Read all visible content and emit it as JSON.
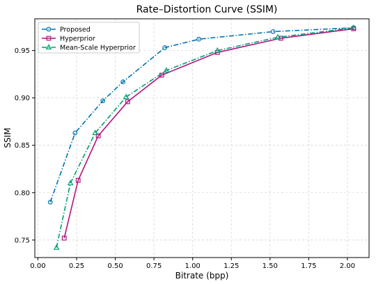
{
  "chart_data": {
    "type": "line",
    "title": "Rate–Distortion Curve (SSIM)",
    "xlabel": "Bitrate (bpp)",
    "ylabel": "SSIM",
    "xlim": [
      -0.02,
      2.14
    ],
    "ylim": [
      0.7315,
      0.9835
    ],
    "xticks": [
      0.0,
      0.25,
      0.5,
      0.75,
      1.0,
      1.25,
      1.5,
      1.75,
      2.0
    ],
    "xtick_labels": [
      "0.00",
      "0.25",
      "0.50",
      "0.75",
      "1.00",
      "1.25",
      "1.50",
      "1.75",
      "2.00"
    ],
    "yticks": [
      0.75,
      0.8,
      0.85,
      0.9,
      0.95
    ],
    "ytick_labels": [
      "0.75",
      "0.80",
      "0.85",
      "0.90",
      "0.95"
    ],
    "grid": true,
    "legend_position": "top-left",
    "series": [
      {
        "name": "Proposed",
        "color": "#0072b2",
        "line_style": "dashdot",
        "marker": "circle",
        "x": [
          0.08,
          0.24,
          0.42,
          0.55,
          0.82,
          1.04,
          1.52,
          2.04
        ],
        "y": [
          0.79,
          0.863,
          0.897,
          0.917,
          0.953,
          0.962,
          0.97,
          0.974
        ]
      },
      {
        "name": "Hyperprior",
        "color": "#b5117f",
        "line_style": "solid",
        "marker": "square",
        "x": [
          0.17,
          0.26,
          0.39,
          0.58,
          0.8,
          1.16,
          1.57,
          2.04
        ],
        "y": [
          0.752,
          0.813,
          0.86,
          0.896,
          0.924,
          0.948,
          0.963,
          0.973
        ]
      },
      {
        "name": "Mean-Scale Hyperprior",
        "color": "#009e73",
        "line_style": "dashdot",
        "marker": "triangle",
        "x": [
          0.12,
          0.21,
          0.37,
          0.57,
          0.83,
          1.16,
          1.55,
          2.04
        ],
        "y": [
          0.742,
          0.81,
          0.863,
          0.901,
          0.929,
          0.95,
          0.964,
          0.974
        ]
      }
    ]
  }
}
